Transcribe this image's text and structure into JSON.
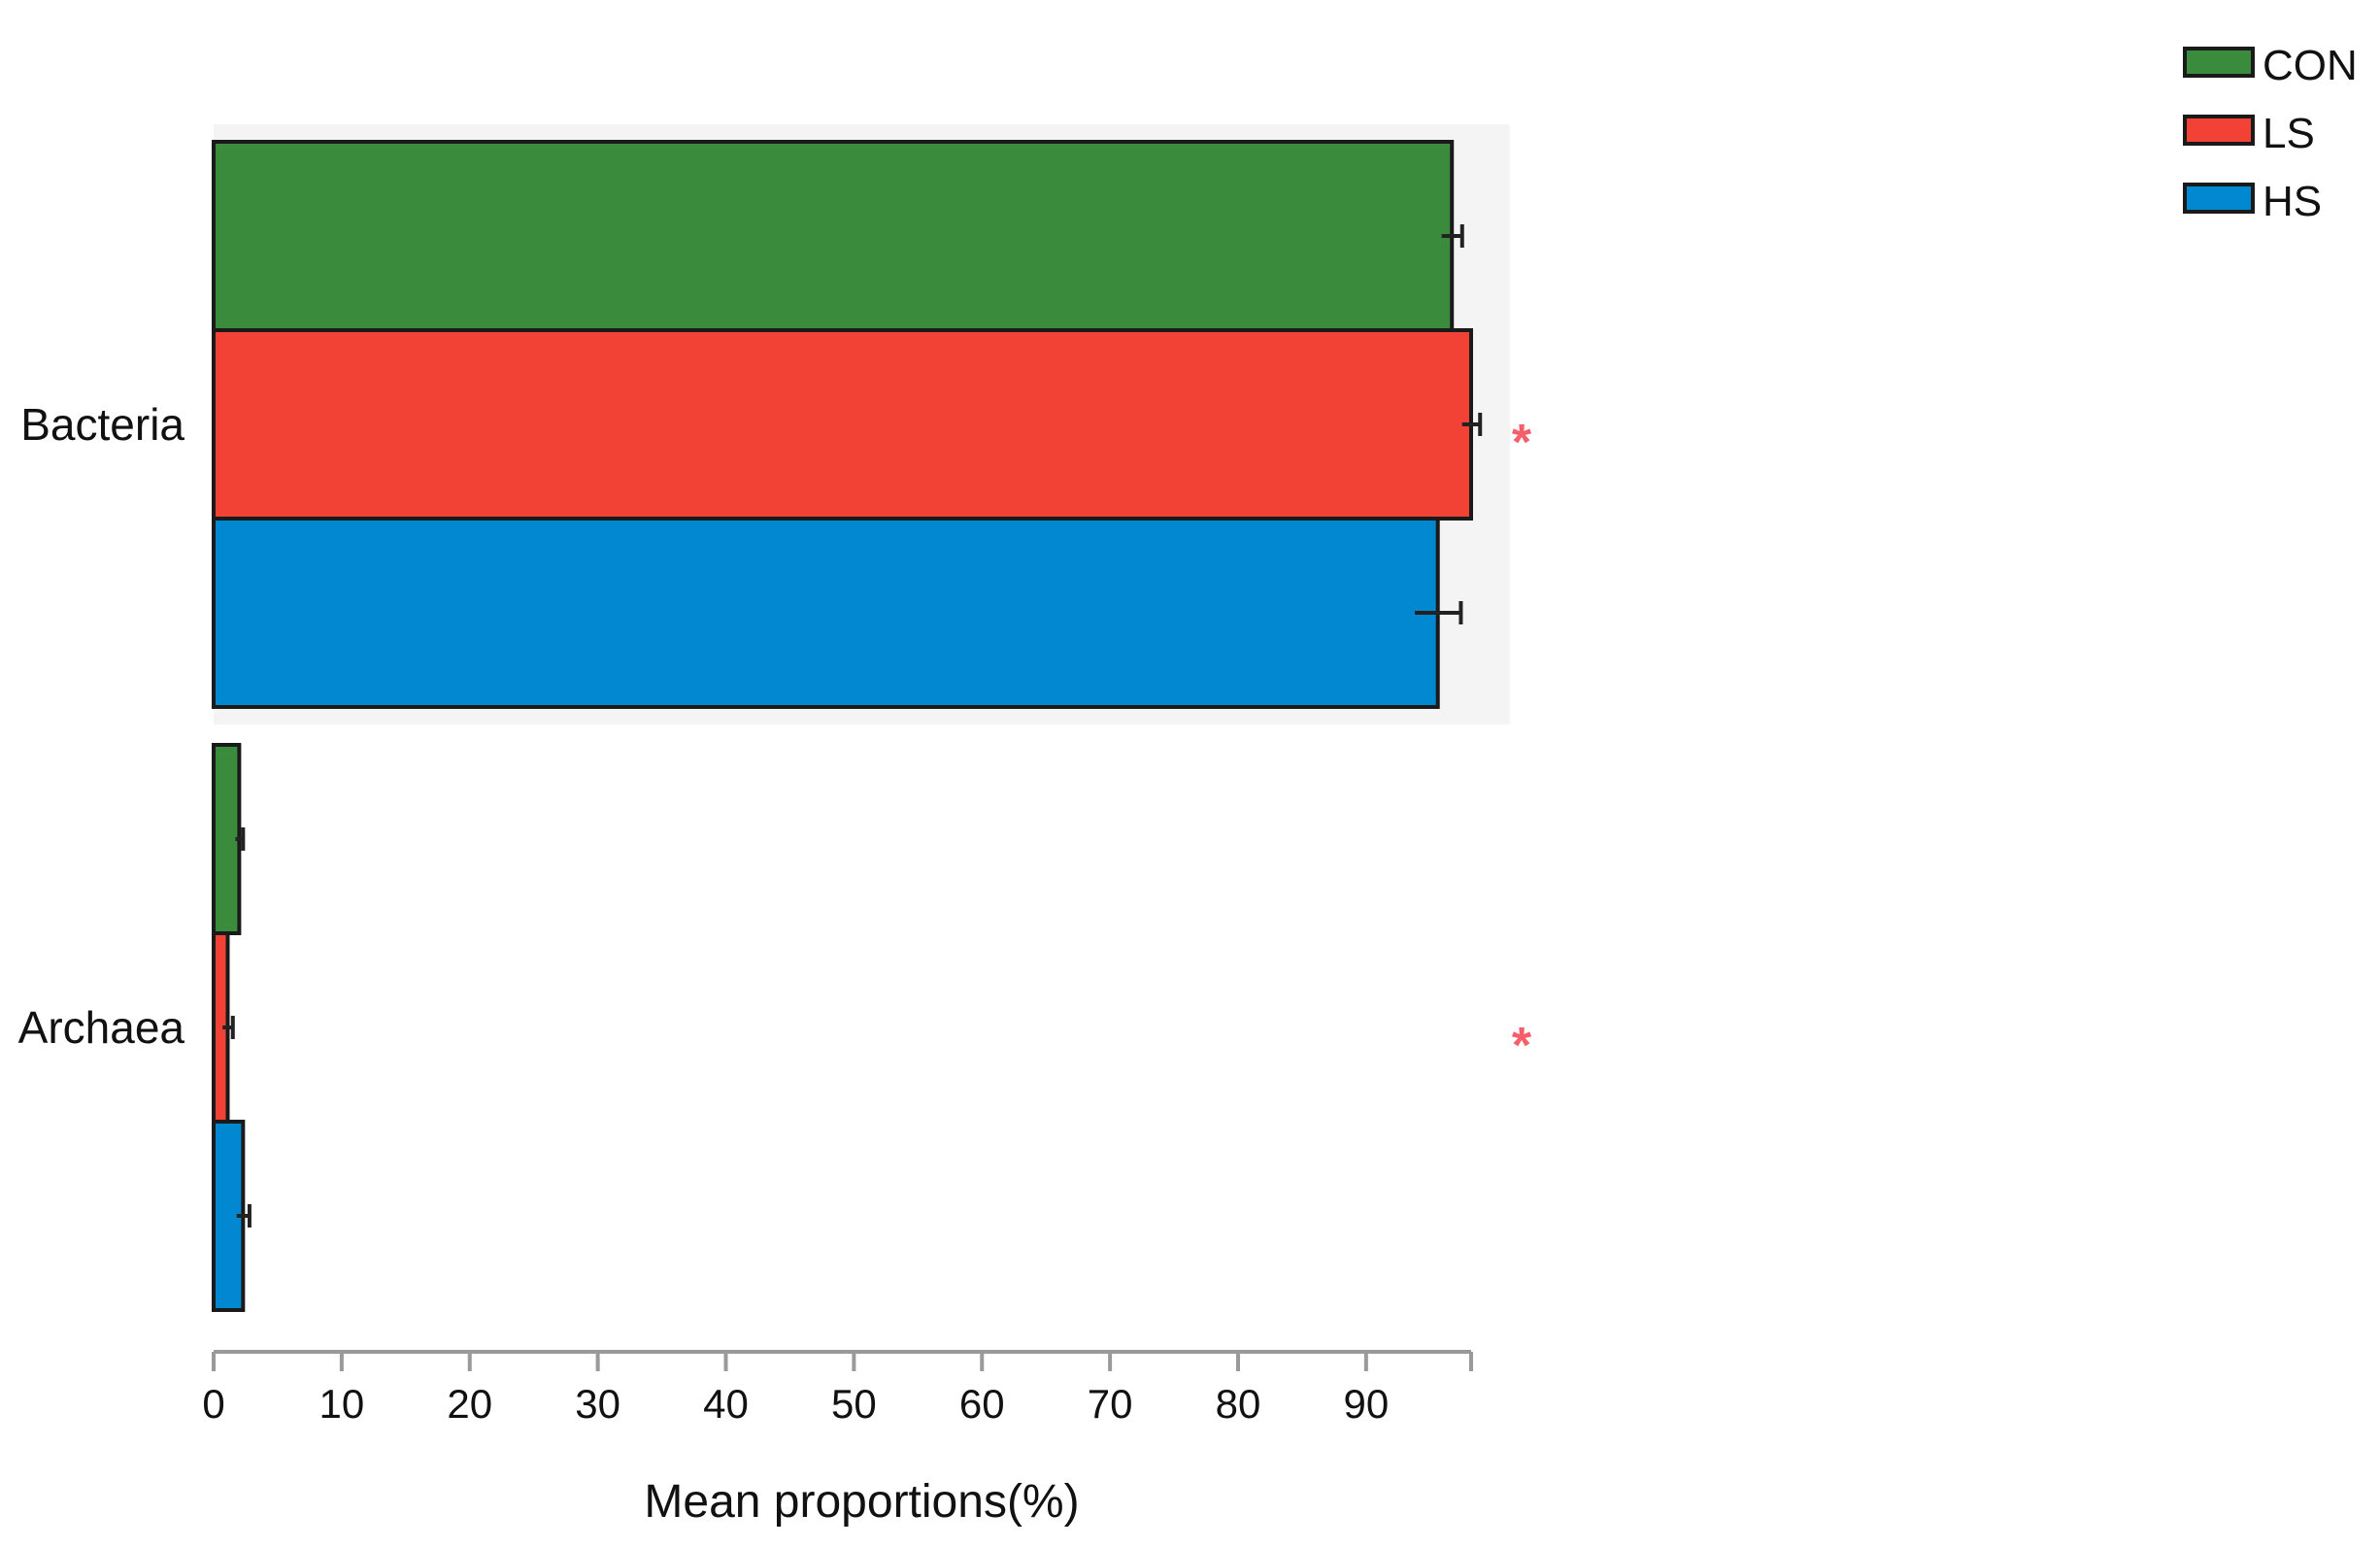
{
  "chart_data": {
    "type": "bar",
    "orientation": "horizontal",
    "categories": [
      "Bacteria",
      "Archaea"
    ],
    "series": [
      {
        "name": "CON",
        "color": "#3a8c3c",
        "values": [
          96.7,
          2.0
        ],
        "errors": [
          0.8,
          0.3
        ]
      },
      {
        "name": "LS",
        "color": "#f24236",
        "values": [
          98.2,
          1.1
        ],
        "errors": [
          0.7,
          0.4
        ]
      },
      {
        "name": "HS",
        "color": "#0288d1",
        "values": [
          95.6,
          2.3
        ],
        "errors": [
          1.8,
          0.5
        ]
      }
    ],
    "significance": [
      "*",
      "*"
    ],
    "significance_color": "#f4606a",
    "xlabel": "Mean proportions(%)",
    "xlim": [
      0,
      98.2
    ],
    "xticks": [
      0,
      10,
      20,
      30,
      40,
      50,
      60,
      70,
      80,
      90
    ],
    "highlight_category": "Bacteria",
    "legend_position": "top-right",
    "grid": false
  }
}
